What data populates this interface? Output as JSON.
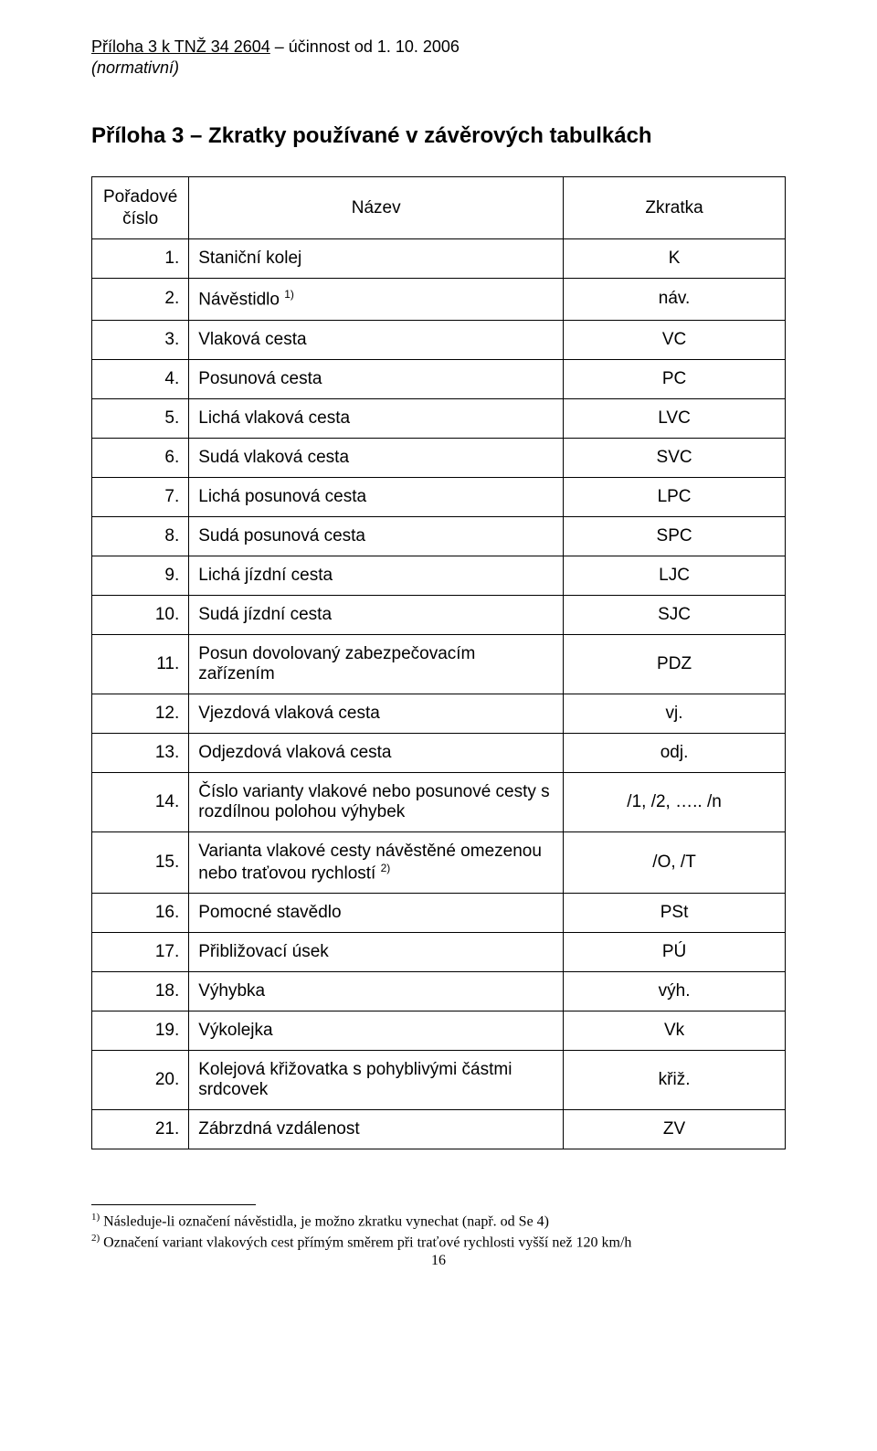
{
  "header": {
    "line1_prefix": "Příloha 3 k TNŽ 34 2604",
    "line1_suffix": " – účinnost od 1. 10. 2006",
    "line2": "(normativní)"
  },
  "title": "Příloha 3 – Zkratky používané v závěrových tabulkách",
  "table": {
    "head": {
      "col1_line1": "Pořadové",
      "col1_line2": "číslo",
      "col2": "Název",
      "col3": "Zkratka"
    },
    "rows": [
      {
        "idx": "1.",
        "name": "Staniční kolej",
        "abbr": "K"
      },
      {
        "idx": "2.",
        "name": "Návěstidlo ",
        "name_sup": "1)",
        "abbr": "náv."
      },
      {
        "idx": "3.",
        "name": "Vlaková cesta",
        "abbr": "VC"
      },
      {
        "idx": "4.",
        "name": "Posunová cesta",
        "abbr": "PC"
      },
      {
        "idx": "5.",
        "name": "Lichá vlaková cesta",
        "abbr": "LVC"
      },
      {
        "idx": "6.",
        "name": "Sudá vlaková cesta",
        "abbr": "SVC"
      },
      {
        "idx": "7.",
        "name": "Lichá posunová cesta",
        "abbr": "LPC"
      },
      {
        "idx": "8.",
        "name": "Sudá posunová cesta",
        "abbr": "SPC"
      },
      {
        "idx": "9.",
        "name": "Lichá jízdní cesta",
        "abbr": "LJC"
      },
      {
        "idx": "10.",
        "name": "Sudá jízdní cesta",
        "abbr": "SJC"
      },
      {
        "idx": "11.",
        "name": "Posun dovolovaný zabezpečovacím zařízením",
        "abbr": "PDZ"
      },
      {
        "idx": "12.",
        "name": "Vjezdová vlaková cesta",
        "abbr": "vj."
      },
      {
        "idx": "13.",
        "name": "Odjezdová vlaková cesta",
        "abbr": "odj."
      },
      {
        "idx": "14.",
        "name": "Číslo varianty vlakové nebo posunové cesty s rozdílnou polohou výhybek",
        "abbr": "/1, /2, ….. /n"
      },
      {
        "idx": "15.",
        "name": "Varianta vlakové cesty návěstěné omezenou nebo traťovou rychlostí ",
        "name_sup": "2)",
        "abbr": "/O, /T"
      },
      {
        "idx": "16.",
        "name": "Pomocné stavědlo",
        "abbr": "PSt"
      },
      {
        "idx": "17.",
        "name": "Přibližovací úsek",
        "abbr": "PÚ"
      },
      {
        "idx": "18.",
        "name": "Výhybka",
        "abbr": "výh."
      },
      {
        "idx": "19.",
        "name": "Výkolejka",
        "abbr": "Vk"
      },
      {
        "idx": "20.",
        "name": "Kolejová křižovatka s pohyblivými částmi srdcovek",
        "abbr": "křiž."
      },
      {
        "idx": "21.",
        "name": "Zábrzdná vzdálenost",
        "abbr": "ZV"
      }
    ]
  },
  "footnotes": {
    "n1_sup": "1)",
    "n1_text": " Následuje-li označení návěstidla, je možno zkratku vynechat (např. od Se 4)",
    "n2_sup": "2)",
    "n2_text": " Označení variant vlakových cest přímým směrem při traťové rychlosti vyšší než 120 km/h"
  },
  "page_number": "16"
}
